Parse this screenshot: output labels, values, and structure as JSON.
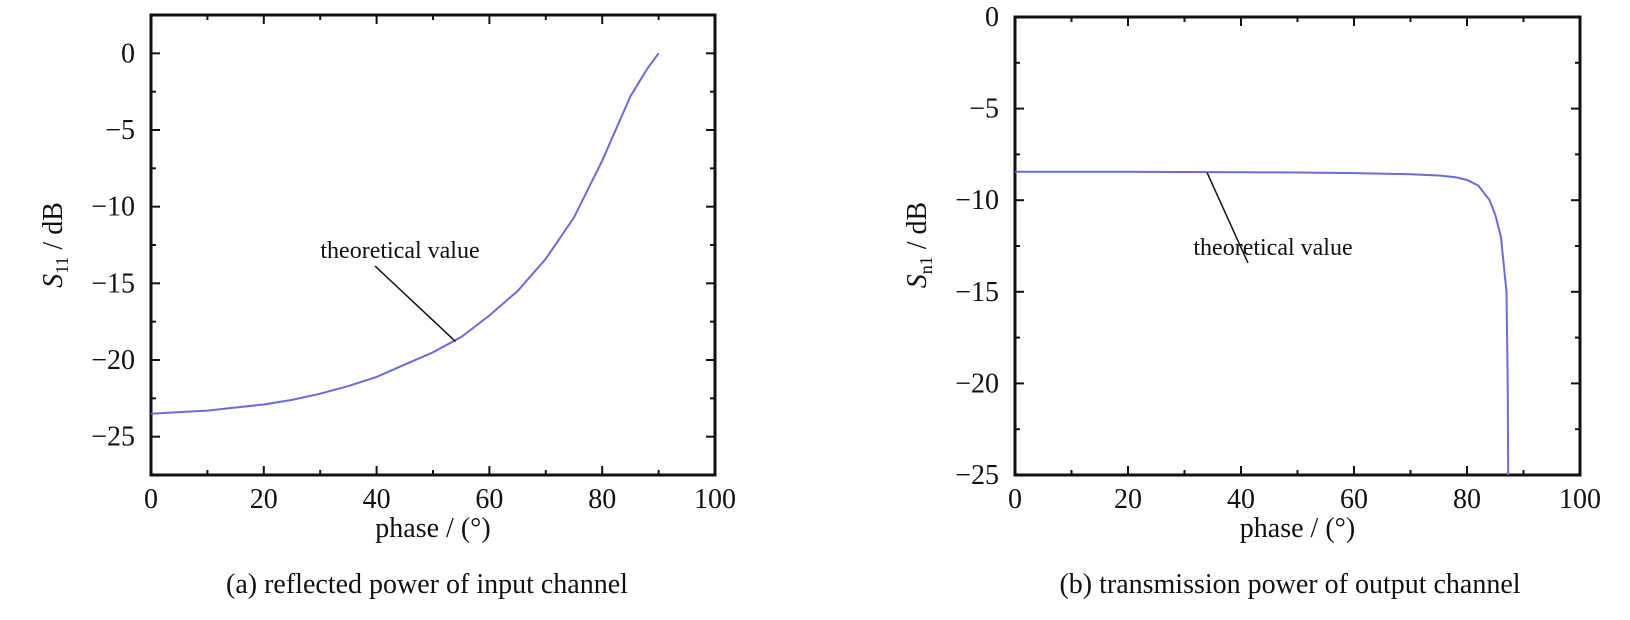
{
  "chart_data": [
    {
      "type": "line",
      "caption": "(a) reflected power of input channel",
      "xlabel": "phase / (°)",
      "ylabel_main": "S",
      "ylabel_sub": "11",
      "ylabel_rest": " / dB",
      "xlim": [
        0,
        100
      ],
      "ylim": [
        -27.5,
        2.5
      ],
      "xticks": [
        0,
        20,
        40,
        60,
        80,
        100
      ],
      "yticks": [
        0,
        -5,
        -10,
        -15,
        -20,
        -25
      ],
      "annotation": {
        "text": "theoretical value",
        "x": 54,
        "y": -18.8
      },
      "line_color": "#6b6bd6",
      "series": [
        {
          "x": [
            0,
            5,
            10,
            15,
            20,
            25,
            30,
            35,
            40,
            45,
            50,
            55,
            60,
            65,
            70,
            75,
            80,
            85,
            88,
            90
          ],
          "y": [
            -23.5,
            -23.4,
            -23.3,
            -23.1,
            -22.9,
            -22.6,
            -22.2,
            -21.7,
            -21.1,
            -20.3,
            -19.5,
            -18.5,
            -17.1,
            -15.5,
            -13.4,
            -10.7,
            -7.0,
            -2.8,
            -1.0,
            0.0
          ]
        }
      ]
    },
    {
      "type": "line",
      "caption": "(b) transmission power of output channel",
      "xlabel": "phase / (°)",
      "ylabel_main": "S",
      "ylabel_sub": "n1",
      "ylabel_rest": " / dB",
      "xlim": [
        0,
        100
      ],
      "ylim": [
        -25,
        0
      ],
      "xticks": [
        0,
        20,
        40,
        60,
        80,
        100
      ],
      "yticks": [
        0,
        -5,
        -10,
        -15,
        -20,
        -25
      ],
      "annotation": {
        "text": "theoretical value",
        "x": 34,
        "y": -8.5
      },
      "line_color": "#6b6bd6",
      "series": [
        {
          "x": [
            0,
            10,
            20,
            30,
            40,
            50,
            60,
            70,
            75,
            78,
            80,
            82,
            84,
            85,
            86,
            87,
            87.2,
            87.3
          ],
          "y": [
            -8.45,
            -8.45,
            -8.45,
            -8.46,
            -8.47,
            -8.49,
            -8.52,
            -8.58,
            -8.65,
            -8.75,
            -8.9,
            -9.2,
            -10.0,
            -10.8,
            -12.0,
            -15.0,
            -20.0,
            -25.0
          ]
        }
      ]
    }
  ]
}
